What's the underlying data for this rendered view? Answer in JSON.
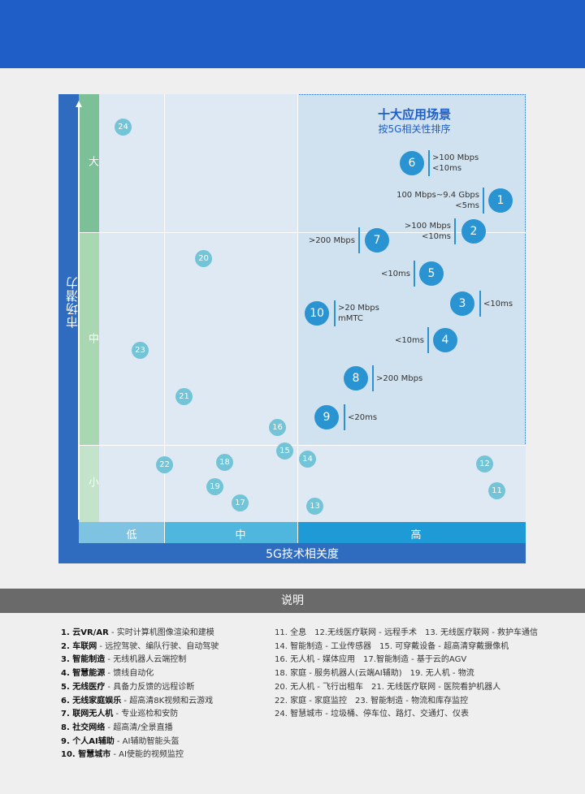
{
  "diagram": {
    "y_axis_title": "市场潜力",
    "x_axis_title": "5G技术相关度",
    "y_levels": [
      "大",
      "中",
      "小"
    ],
    "x_levels": [
      "低",
      "中",
      "高"
    ],
    "highlight_title": "十大应用场景",
    "highlight_subtitle": "按5G相关性排序",
    "top_scenarios": [
      {
        "num": "1",
        "ann1": "100 Mbps~9.4 Gbps",
        "ann2": "<5ms"
      },
      {
        "num": "2",
        "ann1": ">100 Mbps",
        "ann2": "<10ms"
      },
      {
        "num": "3",
        "ann1": "<10ms"
      },
      {
        "num": "4",
        "ann1": "<10ms"
      },
      {
        "num": "5",
        "ann1": "<10ms"
      },
      {
        "num": "6",
        "ann1": ">100 Mbps",
        "ann2": "<10ms"
      },
      {
        "num": "7",
        "ann1": ">200 Mbps"
      },
      {
        "num": "8",
        "ann1": ">200 Mbps"
      },
      {
        "num": "9",
        "ann1": "<20ms"
      },
      {
        "num": "10",
        "ann1": ">20 Mbps",
        "ann2": "mMTC"
      }
    ],
    "other_scenarios": [
      "11",
      "12",
      "13",
      "14",
      "15",
      "16",
      "17",
      "18",
      "19",
      "20",
      "21",
      "22",
      "23",
      "24"
    ]
  },
  "legend": {
    "title": "说明",
    "left": [
      {
        "head": "1. 云VR/AR",
        "desc": " - 实时计算机图像渲染和建模"
      },
      {
        "head": "2. 车联网",
        "desc": " - 远控驾驶、编队行驶、自动驾驶"
      },
      {
        "head": "3. 智能制造",
        "desc": " - 无线机器人云端控制"
      },
      {
        "head": "4. 智慧能源",
        "desc": " - 馈线自动化"
      },
      {
        "head": "5. 无线医疗",
        "desc": " - 具备力反馈的远程诊断"
      },
      {
        "head": "6. 无线家庭娱乐",
        "desc": " - 超高清8K视频和云游戏"
      },
      {
        "head": "7. 联网无人机",
        "desc": " - 专业巡检和安防"
      },
      {
        "head": "8. 社交网络",
        "desc": " - 超高清/全景直播"
      },
      {
        "head": "9. 个人AI辅助",
        "desc": " - AI辅助智能头盔"
      },
      {
        "head": "10. 智慧城市",
        "desc": " - AI使能的视频监控"
      }
    ],
    "right": [
      "11. 全息　12.无线医疗联网 - 远程手术　13. 无线医疗联网 - 救护车通信",
      "14. 智能制造 - 工业传感器　15. 可穿戴设备 - 超高清穿戴摄像机",
      "16. 无人机 - 媒体应用　17.智能制造 - 基于云的AGV",
      "18. 家庭 - 服务机器人(云端AI辅助)　19. 无人机 - 物流",
      "20. 无人机 - 飞行出租车　21. 无线医疗联网 - 医院看护机器人",
      "22. 家庭 - 家庭监控　23. 智能制造 - 物流和库存监控",
      "24. 智慧城市 - 垃圾桶、停车位、路灯、交通灯、仪表"
    ]
  },
  "colors": {
    "header": "#1f5ec6",
    "big_bubble": "#2a93d1",
    "small_bubble": "#73c4d7",
    "y_high": "#7cc098",
    "y_mid": "#a9d7b1",
    "x_low": "#7fc3e3",
    "x_mid": "#4fb6de",
    "x_high": "#1e9ad6"
  }
}
